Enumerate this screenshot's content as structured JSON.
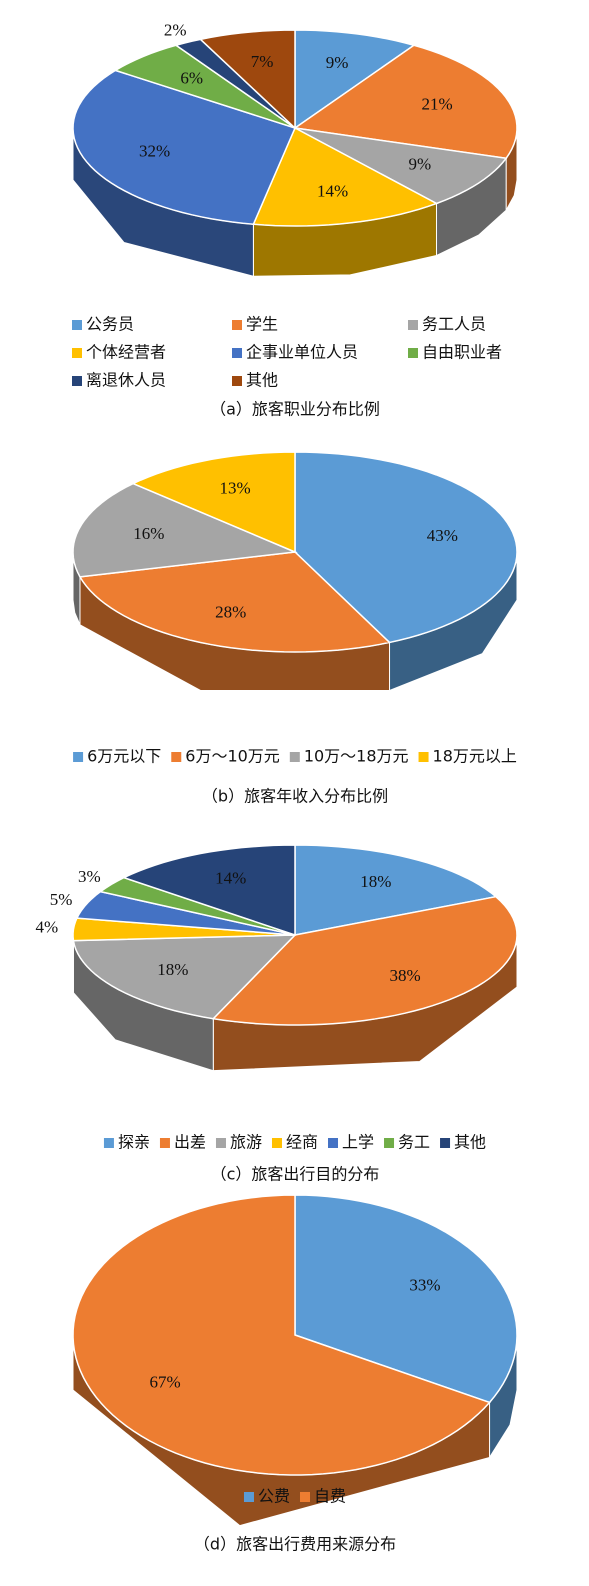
{
  "chart_data": [
    {
      "type": "pie",
      "title": "（a）旅客职业分布比例",
      "categories": [
        "公务员",
        "学生",
        "务工人员",
        "个体经营者",
        "企事业单位人员",
        "自由职业者",
        "离退休人员",
        "其他"
      ],
      "values": [
        9,
        21,
        9,
        14,
        32,
        6,
        2,
        7
      ],
      "value_labels": [
        "9%",
        "21%",
        "9%",
        "14%",
        "32%",
        "6%",
        "2%",
        "7%"
      ],
      "colors": [
        "#5b9bd5",
        "#ed7d31",
        "#a5a5a5",
        "#ffc000",
        "#4472c4",
        "#70ad47",
        "#264478",
        "#9e480e"
      ]
    },
    {
      "type": "pie",
      "title": "（b）旅客年收入分布比例",
      "categories": [
        "6万元以下",
        "6万～10万元",
        "10万～18万元",
        "18万元以上"
      ],
      "values": [
        43,
        28,
        16,
        13
      ],
      "value_labels": [
        "43%",
        "28%",
        "16%",
        "13%"
      ],
      "colors": [
        "#5b9bd5",
        "#ed7d31",
        "#a5a5a5",
        "#ffc000"
      ]
    },
    {
      "type": "pie",
      "title": "（c）旅客出行目的分布",
      "categories": [
        "探亲",
        "出差",
        "旅游",
        "经商",
        "上学",
        "务工",
        "其他"
      ],
      "values": [
        18,
        38,
        18,
        4,
        5,
        3,
        14
      ],
      "value_labels": [
        "18%",
        "38%",
        "18%",
        "4%",
        "5%",
        "3%",
        "14%"
      ],
      "colors": [
        "#5b9bd5",
        "#ed7d31",
        "#a5a5a5",
        "#ffc000",
        "#4472c4",
        "#70ad47",
        "#264478"
      ]
    },
    {
      "type": "pie",
      "title": "（d）旅客出行费用来源分布",
      "categories": [
        "公费",
        "自费"
      ],
      "values": [
        33,
        67
      ],
      "value_labels": [
        "33%",
        "67%"
      ],
      "colors": [
        "#5b9bd5",
        "#ed7d31"
      ]
    }
  ]
}
